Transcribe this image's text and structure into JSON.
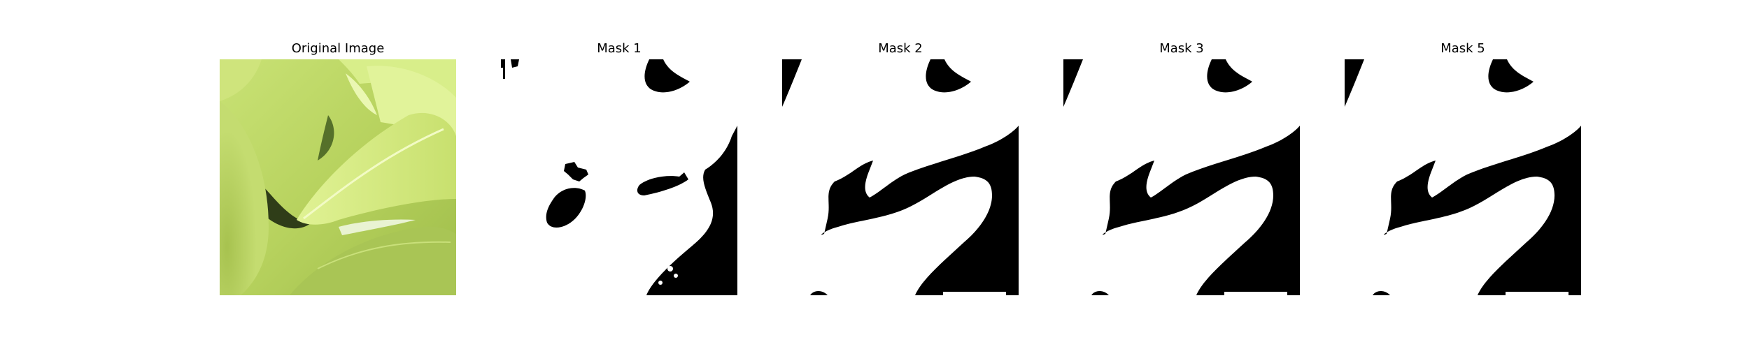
{
  "figure": {
    "panels": [
      {
        "title": "Original Image",
        "kind": "photo",
        "subject": "green-leaves"
      },
      {
        "title": "Mask 1",
        "kind": "mask"
      },
      {
        "title": "Mask 2",
        "kind": "mask"
      },
      {
        "title": "Mask 3",
        "kind": "mask"
      },
      {
        "title": "Mask 5",
        "kind": "mask"
      }
    ],
    "colors": {
      "mask_foreground": "#000000",
      "mask_background": "#ffffff",
      "leaf_light": "#d7ec7e",
      "leaf_mid": "#b8d35c",
      "leaf_dark": "#7f9d34",
      "shadow": "#2c3a16"
    }
  }
}
